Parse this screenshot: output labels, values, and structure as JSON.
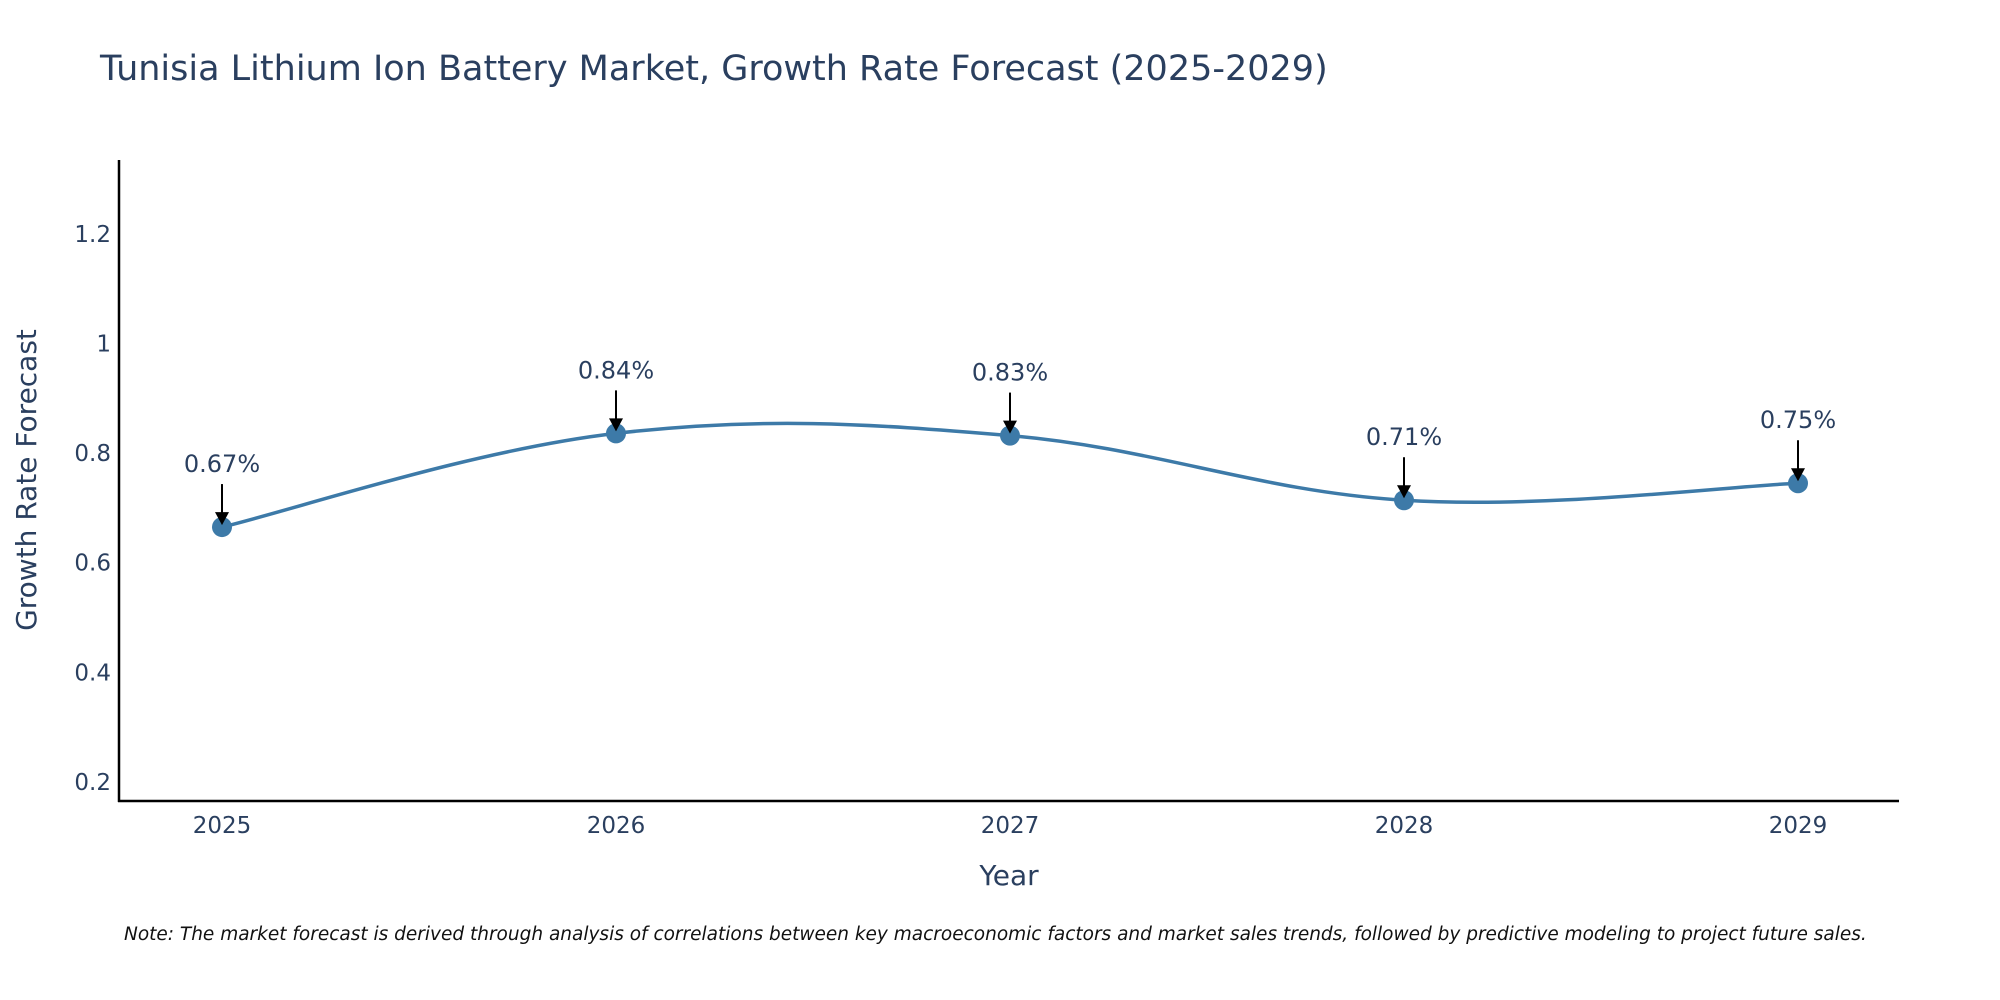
{
  "chart_data": {
    "type": "line",
    "title": "Tunisia Lithium Ion Battery Market, Growth Rate Forecast (2025-2029)",
    "xlabel": "Year",
    "ylabel": "Growth Rate Forecast",
    "categories": [
      "2025",
      "2026",
      "2027",
      "2028",
      "2029"
    ],
    "values": [
      0.665,
      0.836,
      0.832,
      0.714,
      0.745
    ],
    "annotations": [
      "0.67%",
      "0.84%",
      "0.83%",
      "0.71%",
      "0.75%"
    ],
    "ylim": [
      0.165,
      1.335
    ],
    "yticks": [
      0.2,
      0.4,
      0.6,
      0.8,
      1,
      1.2
    ],
    "ytick_labels": [
      "0.2",
      "0.4",
      "0.6",
      "0.8",
      "1",
      "1.2"
    ],
    "line_shape": "spline",
    "grid": false,
    "line_color": "#3d7aa8",
    "marker_color": "#3d7aa8",
    "note": "Note: The market forecast is derived through analysis of correlations between key macroeconomic factors and market sales trends, followed by predictive modeling to project future sales."
  }
}
